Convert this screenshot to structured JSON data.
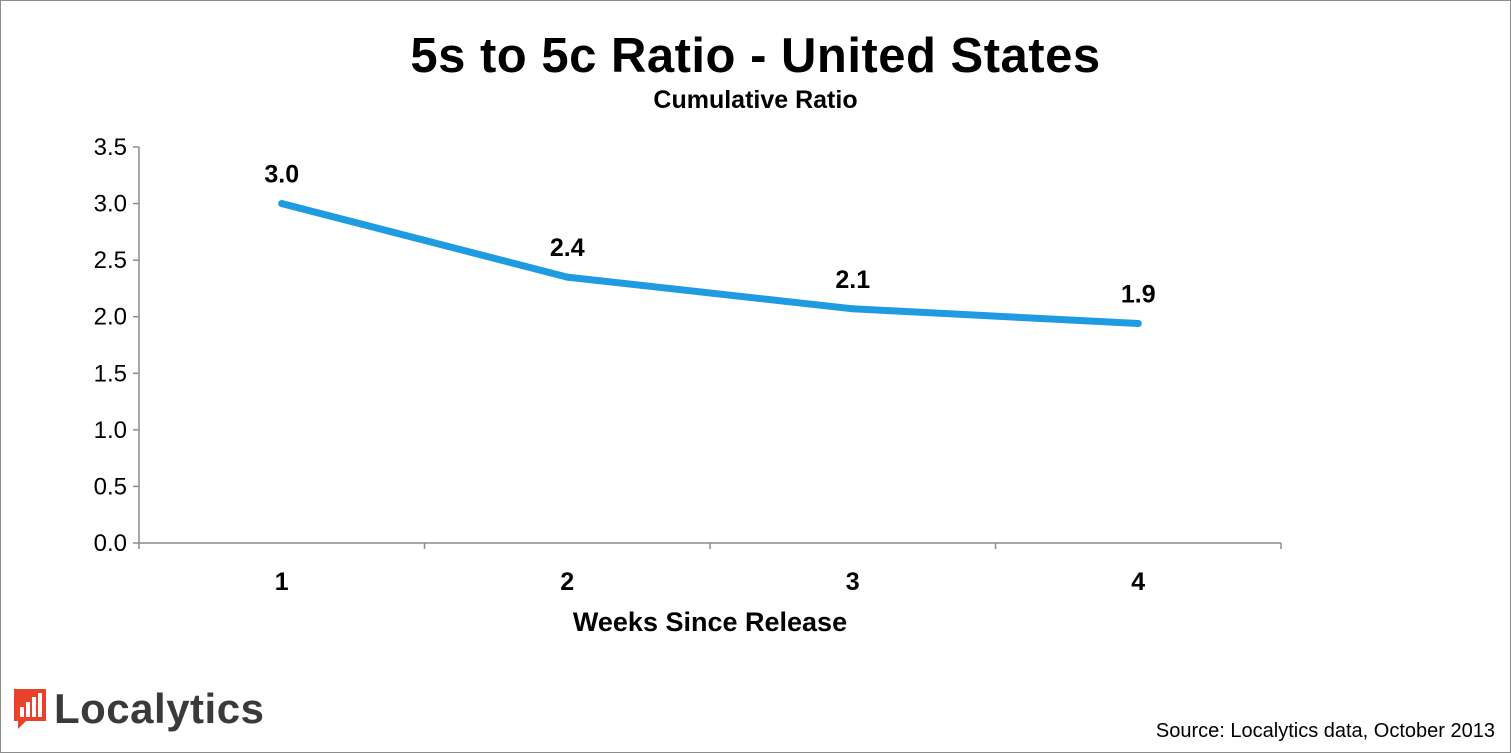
{
  "chart_data": {
    "type": "line",
    "title": "5s to 5c Ratio - United States",
    "subtitle": "Cumulative Ratio",
    "xlabel": "Weeks Since Release",
    "ylabel": "",
    "categories": [
      "1",
      "2",
      "3",
      "4"
    ],
    "series": [
      {
        "values": [
          3.0,
          2.35,
          2.07,
          1.94
        ],
        "data_labels": [
          "3.0",
          "2.4",
          "2.1",
          "1.9"
        ],
        "color": "#1e9be1"
      }
    ],
    "ylim": [
      0,
      3.5
    ],
    "yticks": [
      "0.0",
      "0.5",
      "1.0",
      "1.5",
      "2.0",
      "2.5",
      "3.0",
      "3.5"
    ],
    "grid": false,
    "legend": "none"
  },
  "branding": {
    "logo_text": "Localytics",
    "logo_icon": "bar-chart-icon",
    "logo_color": "#e8432a"
  },
  "footer": {
    "source": "Source: Localytics data, October 2013"
  }
}
